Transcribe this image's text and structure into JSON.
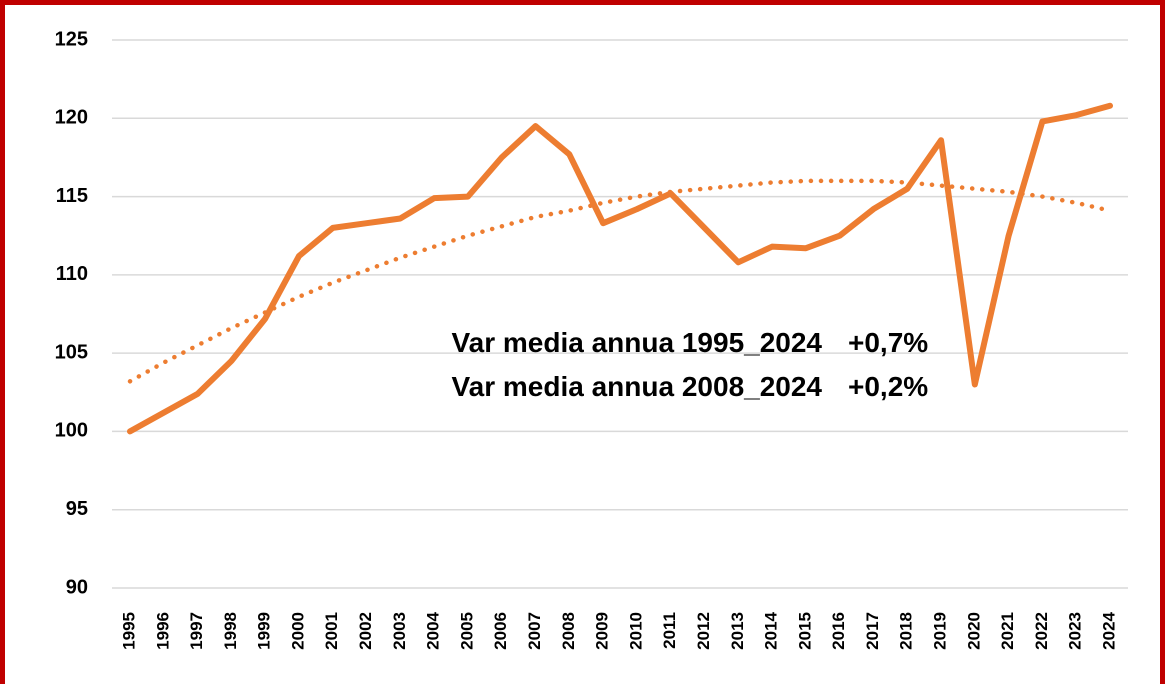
{
  "chart_data": {
    "type": "line",
    "categories": [
      "1995",
      "1996",
      "1997",
      "1998",
      "1999",
      "2000",
      "2001",
      "2002",
      "2003",
      "2004",
      "2005",
      "2006",
      "2007",
      "2008",
      "2009",
      "2010",
      "2011",
      "2012",
      "2013",
      "2014",
      "2015",
      "2016",
      "2017",
      "2018",
      "2019",
      "2020",
      "2021",
      "2022",
      "2023",
      "2024"
    ],
    "series": [
      {
        "color": "#ed7d31",
        "style": "solid",
        "values": [
          100,
          101.2,
          102.4,
          104.5,
          107.2,
          111.2,
          113.0,
          113.3,
          113.6,
          114.9,
          115.0,
          117.5,
          119.5,
          117.7,
          113.3,
          114.2,
          115.2,
          113.0,
          110.8,
          111.8,
          111.7,
          112.5,
          114.2,
          115.5,
          118.6,
          103.0,
          112.5,
          119.8,
          120.2,
          120.8
        ]
      },
      {
        "color": "#ed7d31",
        "style": "dotted",
        "values": [
          103.2,
          104.4,
          105.5,
          106.6,
          107.6,
          108.6,
          109.5,
          110.3,
          111.1,
          111.8,
          112.5,
          113.1,
          113.7,
          114.1,
          114.6,
          115.0,
          115.3,
          115.5,
          115.7,
          115.9,
          116.0,
          116.0,
          116.0,
          115.9,
          115.7,
          115.5,
          115.3,
          115.0,
          114.6,
          114.1
        ]
      }
    ],
    "ylim": [
      90,
      125
    ],
    "yticks": [
      90,
      95,
      100,
      105,
      110,
      115,
      120,
      125
    ],
    "grid": true,
    "annotations": [
      {
        "text": "Var media annua 1995_2024",
        "value": "+0,7%"
      },
      {
        "text": "Var media annua 2008_2024",
        "value": "+0,2%"
      }
    ]
  }
}
